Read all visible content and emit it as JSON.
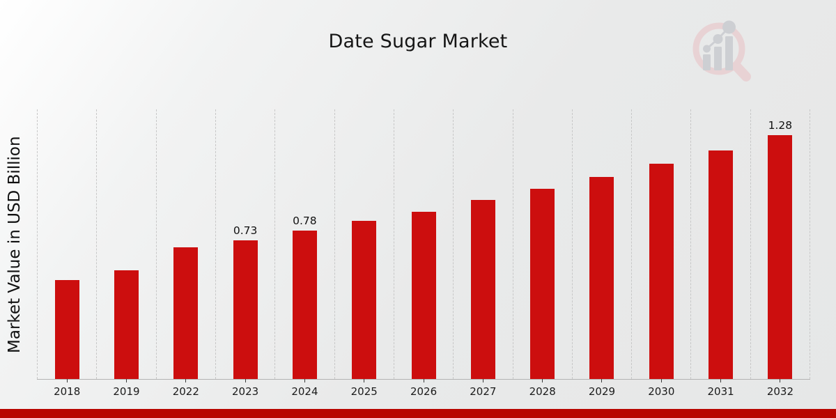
{
  "header": {
    "title": "Date Sugar Market"
  },
  "chart_data": {
    "type": "bar",
    "title": "Date Sugar Market",
    "xlabel": "",
    "ylabel": "Market Value in USD Billion",
    "unit": "USD Billion",
    "categories": [
      "2018",
      "2019",
      "2022",
      "2023",
      "2024",
      "2025",
      "2026",
      "2027",
      "2028",
      "2029",
      "2030",
      "2031",
      "2032"
    ],
    "values": [
      0.52,
      0.57,
      0.69,
      0.73,
      0.78,
      0.83,
      0.88,
      0.94,
      1.0,
      1.06,
      1.13,
      1.2,
      1.28
    ],
    "annotations": [
      {
        "category": "2023",
        "text": "0.73"
      },
      {
        "category": "2024",
        "text": "0.78"
      },
      {
        "category": "2032",
        "text": "1.28"
      }
    ],
    "ylim": [
      0,
      1.42
    ],
    "grid": "vertical-dashed",
    "legend": "none"
  },
  "theme": {
    "bar_color": "#cc0e0e",
    "footer_bar_color": "#b80500",
    "gridline_color": "#c7c7c7",
    "axis_line_color": "#b3b3b3",
    "title_color": "#151515",
    "logo_ring_color": "#e9ced1",
    "logo_bar_color": "#c9cbd0"
  }
}
